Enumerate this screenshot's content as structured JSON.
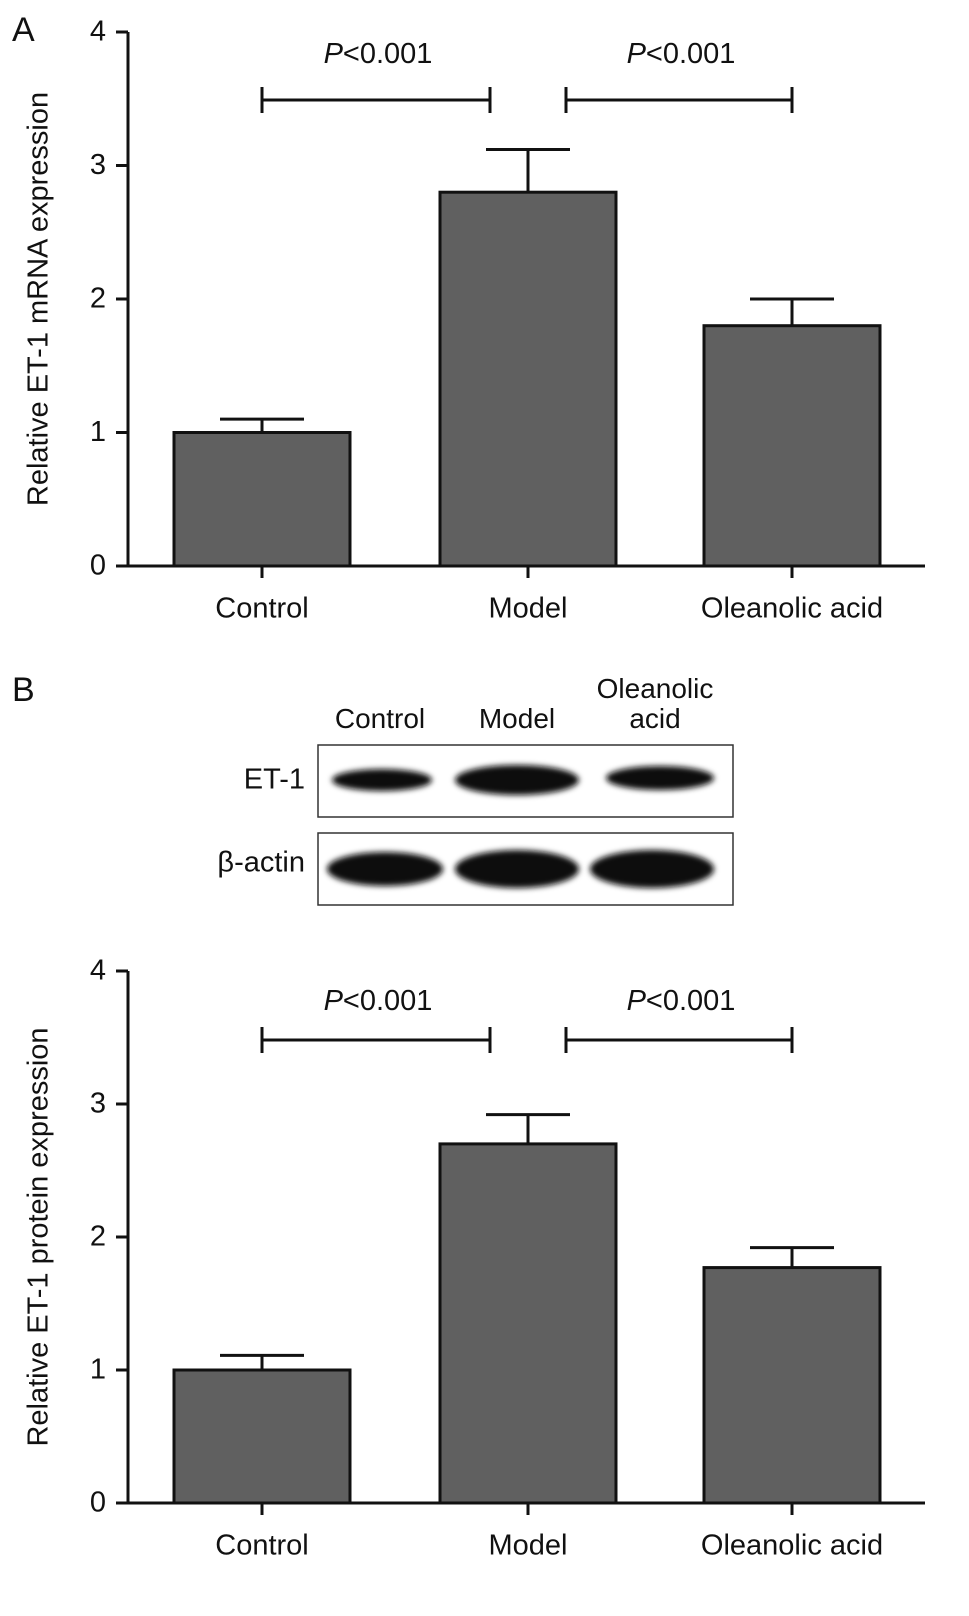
{
  "panel_labels": [
    "A",
    "B"
  ],
  "chart_data": [
    {
      "type": "bar",
      "y_label": "Relative ET-1 mRNA expression",
      "categories": [
        "Control",
        "Model",
        "Oleanolic acid"
      ],
      "values": [
        1.0,
        2.8,
        1.8
      ],
      "errors": [
        0.1,
        0.32,
        0.2
      ],
      "color": "#606060",
      "ylim": [
        0,
        4
      ],
      "yticks": [
        0,
        1,
        2,
        3,
        4
      ],
      "annotations": [
        {
          "text": "P<0.001",
          "between": [
            "Control",
            "Model"
          ]
        },
        {
          "text": "P<0.001",
          "between": [
            "Model",
            "Oleanolic acid"
          ]
        }
      ]
    },
    {
      "type": "bar",
      "y_label": "Relative ET-1 protein expression",
      "categories": [
        "Control",
        "Model",
        "Oleanolic acid"
      ],
      "values": [
        1.0,
        2.7,
        1.77
      ],
      "errors": [
        0.11,
        0.22,
        0.15
      ],
      "color": "#606060",
      "ylim": [
        0,
        4
      ],
      "yticks": [
        0,
        1,
        2,
        3,
        4
      ],
      "annotations": [
        {
          "text": "P<0.001",
          "between": [
            "Control",
            "Model"
          ]
        },
        {
          "text": "P<0.001",
          "between": [
            "Model",
            "Oleanolic acid"
          ]
        }
      ]
    }
  ],
  "blot": {
    "lanes": [
      "Control",
      "Model",
      "Oleanolic acid"
    ],
    "rows": [
      "ET-1",
      "β-actin"
    ]
  }
}
